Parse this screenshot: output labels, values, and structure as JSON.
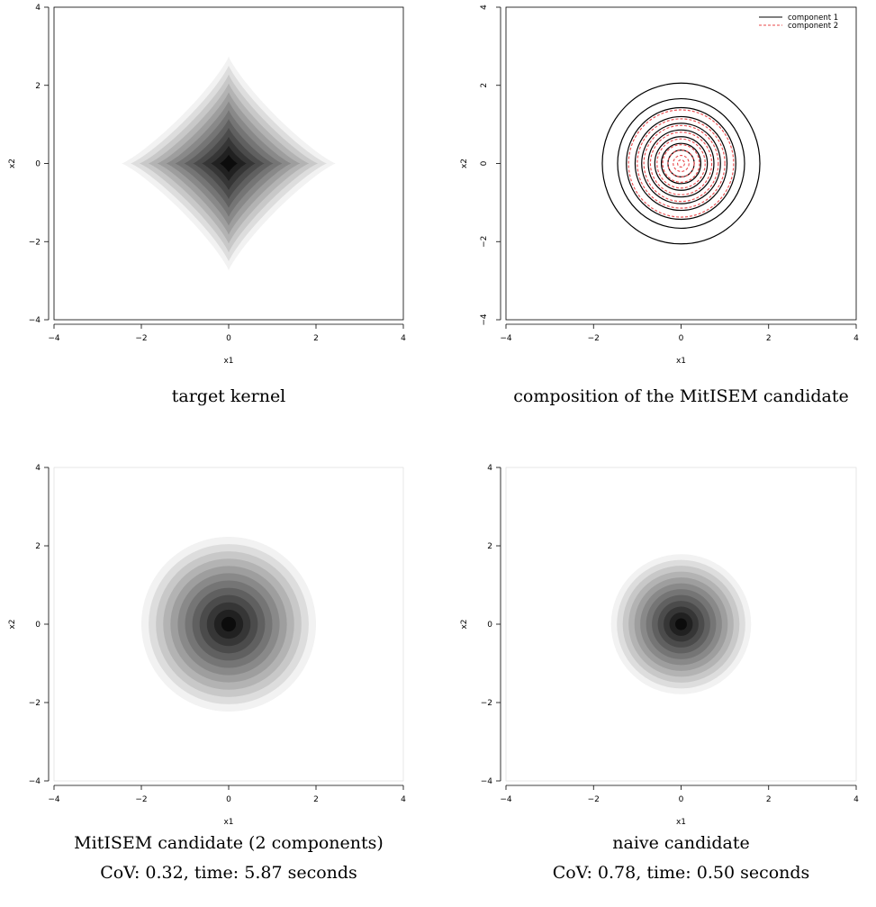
{
  "chart_data": [
    {
      "type": "heatmap",
      "shape": "diamond",
      "caption": [
        "target kernel"
      ],
      "xlabel": "x1",
      "ylabel": "x2",
      "xlim": [
        -4,
        4
      ],
      "ylim": [
        -4,
        4
      ],
      "xticks": [
        "-4",
        "-2",
        "0",
        "2",
        "4"
      ],
      "yticks": [
        "-4",
        "-2",
        "0",
        "2",
        "4"
      ],
      "center": [
        0,
        0
      ],
      "extent": 2.45,
      "levels": 12,
      "grid": false
    },
    {
      "type": "contour",
      "caption": [
        "composition of the MitISEM candidate"
      ],
      "xlabel": "x1",
      "ylabel": "x2",
      "xlim": [
        -4,
        4
      ],
      "ylim": [
        -4,
        4
      ],
      "xticks": [
        "-4",
        "-2",
        "0",
        "2",
        "4"
      ],
      "yticks": [
        "-4",
        "-2",
        "0",
        "2",
        "4"
      ],
      "legend_position": "top-right",
      "grid": false,
      "series": [
        {
          "name": "component 1",
          "color": "#000000",
          "dash": "solid",
          "radii": [
            1.8,
            1.45,
            1.25,
            1.05,
            0.9,
            0.75,
            0.6,
            0.45,
            0.3
          ]
        },
        {
          "name": "component 2",
          "color": "#e8474a",
          "dash": "dashed",
          "radii": [
            1.2,
            1.0,
            0.85,
            0.7,
            0.55,
            0.42,
            0.3,
            0.18,
            0.08
          ]
        }
      ]
    },
    {
      "type": "heatmap",
      "shape": "circle",
      "caption": [
        "MitISEM candidate (2 components)",
        "CoV: 0.32, time: 5.87 seconds"
      ],
      "xlabel": "x1",
      "ylabel": "x2",
      "xlim": [
        -4,
        4
      ],
      "ylim": [
        -4,
        4
      ],
      "xticks": [
        "-4",
        "-2",
        "0",
        "2",
        "4"
      ],
      "yticks": [
        "-4",
        "-2",
        "0",
        "2",
        "4"
      ],
      "center": [
        0,
        0
      ],
      "extent": 2.0,
      "levels": 12,
      "grid": false
    },
    {
      "type": "heatmap",
      "shape": "circle",
      "caption": [
        "naive candidate",
        "CoV: 0.78, time: 0.50 seconds"
      ],
      "xlabel": "x1",
      "ylabel": "x2",
      "xlim": [
        -4,
        4
      ],
      "ylim": [
        -4,
        4
      ],
      "xticks": [
        "-4",
        "-2",
        "0",
        "2",
        "4"
      ],
      "yticks": [
        "-4",
        "-2",
        "0",
        "2",
        "4"
      ],
      "center": [
        0,
        0
      ],
      "extent": 1.6,
      "levels": 12,
      "grid": false
    }
  ]
}
